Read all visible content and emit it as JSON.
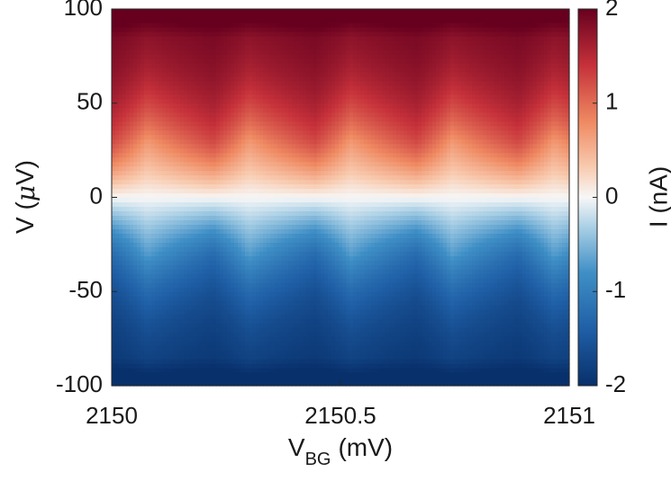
{
  "chart_data": {
    "type": "heatmap",
    "title": "",
    "xlabel": {
      "main": "V",
      "sub": "BG",
      "unit": "(mV)"
    },
    "ylabel": {
      "prefix": "V (",
      "mu": "μ",
      "suffix": "V)"
    },
    "xlim": [
      2150,
      2151
    ],
    "ylim": [
      -100,
      100
    ],
    "x_ticks": [
      2150,
      2150.5,
      2151
    ],
    "x_tick_labels": [
      "2150",
      "2150.5",
      "2151"
    ],
    "y_ticks": [
      -100,
      -50,
      0,
      50,
      100
    ],
    "y_tick_labels": [
      "-100",
      "-50",
      "0",
      "50",
      "100"
    ],
    "colorbar": {
      "label": "I (nA)",
      "limits": [
        -2,
        2
      ],
      "ticks": [
        -2,
        -1,
        0,
        1,
        2
      ],
      "tick_labels": [
        "-2",
        "-1",
        "0",
        "1",
        "2"
      ],
      "colormap": "diverging red-white-blue",
      "colors": {
        "low": "#08306b",
        "mid_low": "#2c7bb6",
        "zero": "#f7f7f7",
        "mid_high": "#ef8a62",
        "high": "#67001f"
      }
    },
    "z_model": {
      "description": "I as function of V, with periodic modulation along V_BG",
      "periods_in_range": 4.5,
      "modulation_amplitude_uV": 10
    }
  }
}
